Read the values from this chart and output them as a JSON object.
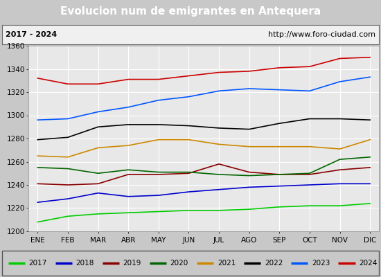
{
  "title": "Evolucion num de emigrantes en Antequera",
  "subtitle_left": "2017 - 2024",
  "subtitle_right": "http://www.foro-ciudad.com",
  "months": [
    "ENE",
    "FEB",
    "MAR",
    "ABR",
    "MAY",
    "JUN",
    "JUL",
    "AGO",
    "SEP",
    "OCT",
    "NOV",
    "DIC"
  ],
  "ylim": [
    1200,
    1360
  ],
  "yticks": [
    1200,
    1220,
    1240,
    1260,
    1280,
    1300,
    1320,
    1340,
    1360
  ],
  "series": {
    "2017": {
      "color": "#00cc00",
      "data": [
        1208,
        1213,
        1215,
        1216,
        1217,
        1218,
        1218,
        1219,
        1221,
        1222,
        1222,
        1224
      ]
    },
    "2018": {
      "color": "#0000cc",
      "data": [
        1225,
        1228,
        1233,
        1230,
        1231,
        1234,
        1236,
        1238,
        1239,
        1240,
        1241,
        1241
      ]
    },
    "2019": {
      "color": "#880000",
      "data": [
        1241,
        1240,
        1241,
        1249,
        1249,
        1250,
        1258,
        1251,
        1249,
        1249,
        1253,
        1255
      ]
    },
    "2020": {
      "color": "#006600",
      "data": [
        1255,
        1254,
        1250,
        1253,
        1251,
        1251,
        1249,
        1248,
        1249,
        1250,
        1262,
        1264
      ]
    },
    "2021": {
      "color": "#cc8800",
      "data": [
        1265,
        1264,
        1272,
        1274,
        1279,
        1279,
        1275,
        1273,
        1273,
        1273,
        1271,
        1279
      ]
    },
    "2022": {
      "color": "#000000",
      "data": [
        1279,
        1281,
        1290,
        1292,
        1292,
        1291,
        1289,
        1288,
        1293,
        1297,
        1297,
        1296
      ]
    },
    "2023": {
      "color": "#0055ff",
      "data": [
        1296,
        1297,
        1303,
        1307,
        1313,
        1316,
        1321,
        1323,
        1322,
        1321,
        1329,
        1333
      ]
    },
    "2024": {
      "color": "#cc0000",
      "data": [
        1332,
        1327,
        1327,
        1331,
        1331,
        1334,
        1337,
        1338,
        1341,
        1342,
        1349,
        1350
      ]
    }
  },
  "title_bg": "#5b9bd5",
  "title_color": "#ffffff",
  "subtitle_bg": "#f0f0f0",
  "plot_bg": "#e8e8e8",
  "grid_color": "#ffffff",
  "outer_bg": "#c8c8c8"
}
